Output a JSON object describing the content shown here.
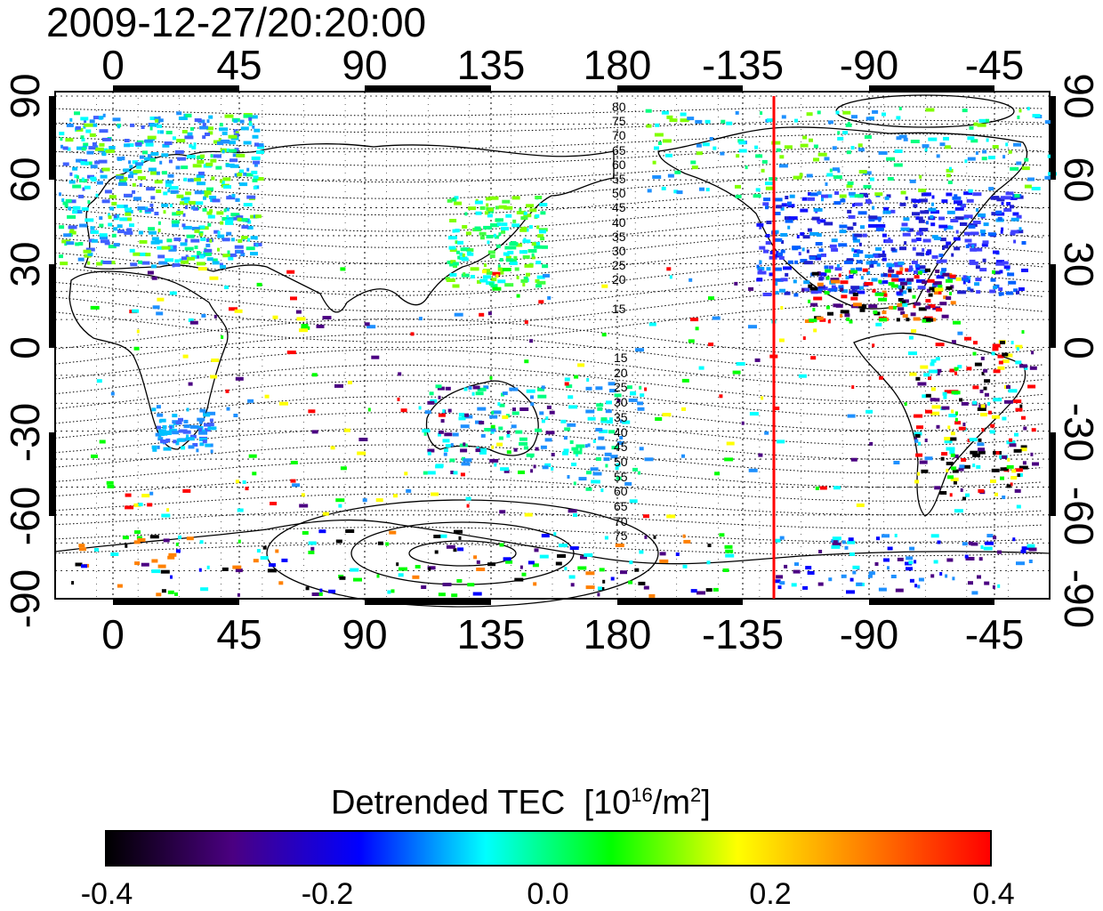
{
  "timestamp": "2009-12-27/20:20:00",
  "map": {
    "lon_ticks": [
      "0",
      "45",
      "90",
      "135",
      "180",
      "-135",
      "-90",
      "-45"
    ],
    "lat_ticks": [
      "90",
      "60",
      "30",
      "0",
      "-30",
      "-60",
      "-90"
    ],
    "contour_labels_north": [
      "80",
      "75",
      "70",
      "65",
      "60",
      "55",
      "50",
      "45",
      "40",
      "35",
      "30",
      "25",
      "20",
      "15"
    ],
    "contour_labels_south": [
      "15",
      "20",
      "25",
      "30",
      "35",
      "40",
      "45",
      "50",
      "55",
      "60",
      "65",
      "70",
      "75"
    ],
    "marker_line": {
      "longitude": -128,
      "color": "#ff0000"
    }
  },
  "colorbar": {
    "title": "Detrended TEC",
    "unit_base": "[10",
    "unit_exp": "16",
    "unit_mid": "/m",
    "unit_exp2": "2",
    "unit_end": "]",
    "labels": [
      "-0.4",
      "-0.2",
      "0.0",
      "0.2",
      "0.4"
    ],
    "range": [
      -0.4,
      0.4
    ],
    "colors": [
      "#000000",
      "#4b0082",
      "#0000ff",
      "#00ffff",
      "#00ff00",
      "#ffff00",
      "#ff8000",
      "#ff0000"
    ]
  }
}
